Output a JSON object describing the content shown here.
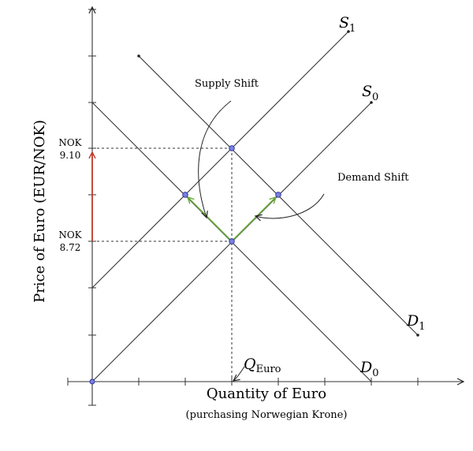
{
  "diagram": {
    "curves": {
      "s1": {
        "label": "S",
        "subscript": "1"
      },
      "s0": {
        "label": "S",
        "subscript": "0"
      },
      "d1": {
        "label": "D",
        "subscript": "1"
      },
      "d0": {
        "label": "D",
        "subscript": "0"
      }
    },
    "annotations": {
      "supply_shift": "Supply Shift",
      "demand_shift": "Demand Shift",
      "q_label": "Q",
      "q_subscript": "Euro"
    },
    "x_axis": {
      "title": "Quantity of Euro",
      "subtitle": "(purchasing Norwegian Krone)"
    },
    "y_axis": {
      "title": "Price of Euro (EUR/NOK)"
    },
    "price_levels": [
      {
        "currency": "NOK",
        "value": "9.10"
      },
      {
        "currency": "NOK",
        "value": "8.72"
      }
    ],
    "colors": {
      "line": "#333333",
      "shift_arrow": "#6aaa3a",
      "price_arrow": "#c0392b",
      "point_fill": "#7b7fe0",
      "point_stroke": "#2a2f9a"
    }
  }
}
